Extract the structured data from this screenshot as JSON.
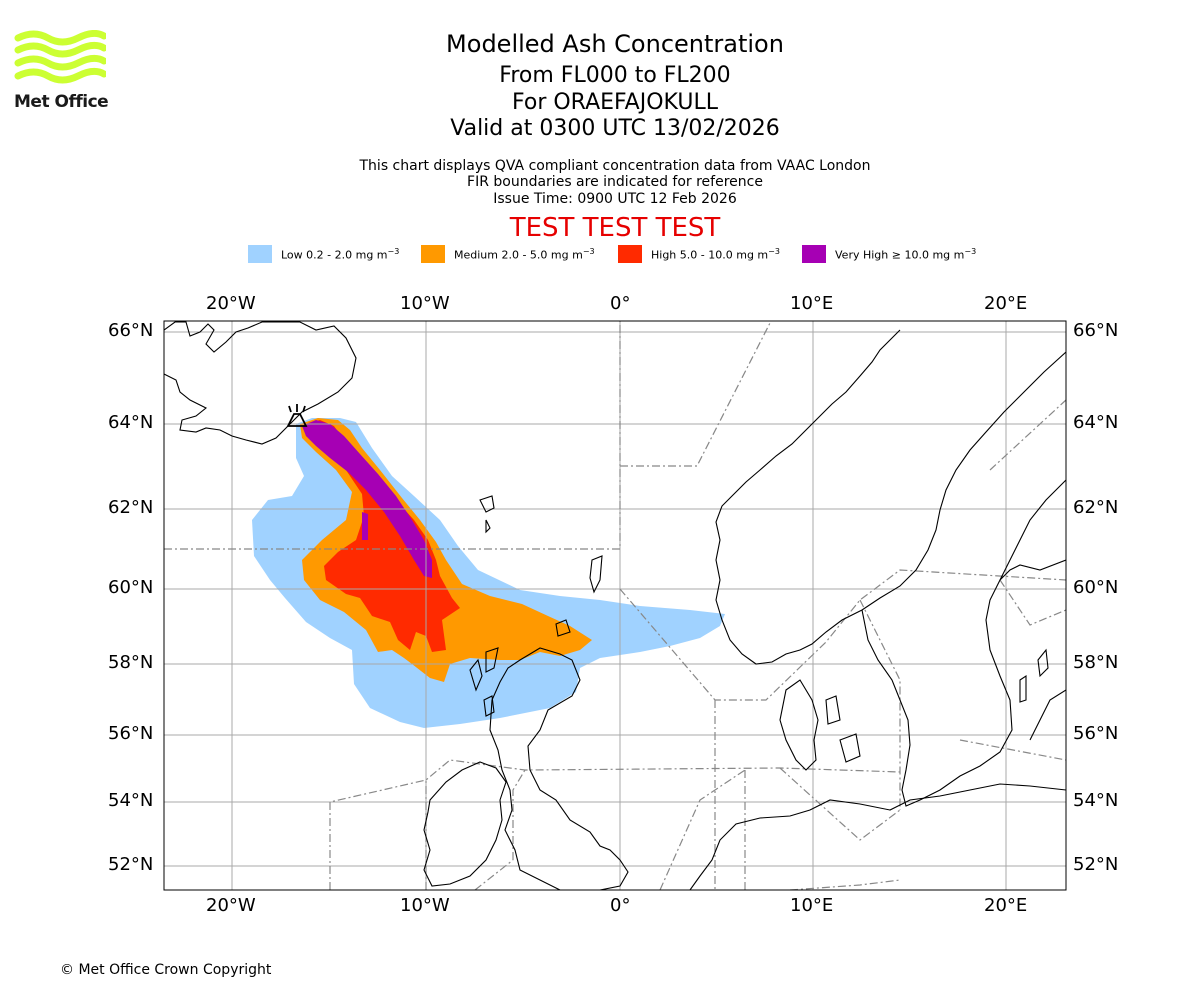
{
  "brand": {
    "name": "Met Office",
    "logo_icon": "met-office-wave-logo",
    "logo_color": "#ccff33"
  },
  "header": {
    "title": "Modelled Ash Concentration",
    "levels": "From FL000 to FL200",
    "volcano": "For ORAEFAJOKULL",
    "valid": "Valid at 0300 UTC 13/02/2026",
    "info_line1": "This chart displays QVA compliant concentration data from VAAC London",
    "info_line2": "FIR boundaries are indicated for reference",
    "info_line3": "Issue Time: 0900 UTC 12 Feb 2026",
    "test_banner": "TEST TEST TEST",
    "test_color": "#e60000"
  },
  "legend": [
    {
      "label": "Low 0.2 - 2.0 mg m",
      "sup": "−3",
      "color": "#a0d2ff"
    },
    {
      "label": "Medium 2.0 - 5.0 mg m",
      "sup": "−3",
      "color": "#ff9900"
    },
    {
      "label": "High 5.0 - 10.0 mg m",
      "sup": "−3",
      "color": "#ff2a00"
    },
    {
      "label": "Very High  ≥  10.0 mg m",
      "sup": "−3",
      "color": "#a600b4"
    }
  ],
  "map": {
    "lon_ticks": [
      "20°W",
      "10°W",
      "0°",
      "10°E",
      "20°E"
    ],
    "lat_ticks": [
      "66°N",
      "64°N",
      "62°N",
      "60°N",
      "58°N",
      "56°N",
      "54°N",
      "52°N"
    ],
    "volcano_icon": "volcano-icon"
  },
  "footer": {
    "copyright": "© Met Office Crown Copyright"
  }
}
